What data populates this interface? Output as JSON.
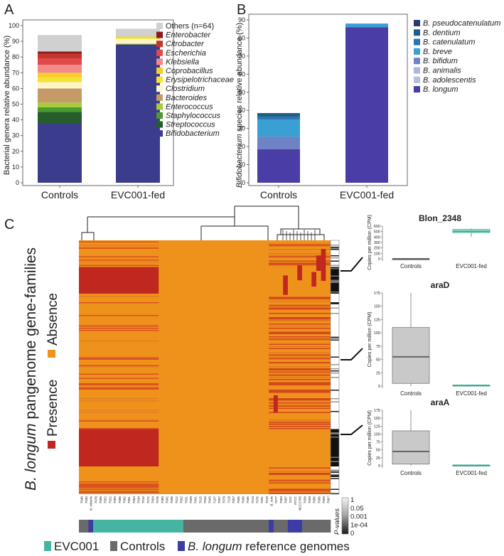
{
  "panelA": {
    "label": "A",
    "chart_data": {
      "type": "stacked-bar",
      "ylabel": "Bacterial genera relative abundance (%)",
      "ylim": [
        0,
        100
      ],
      "yticks": [
        0,
        10,
        20,
        30,
        40,
        50,
        60,
        70,
        80,
        90,
        100
      ],
      "categories": [
        "Controls",
        "EVC001-fed"
      ],
      "series": [
        {
          "name": "Bifidobacterium",
          "color": "#3b3c8c",
          "values": [
            38,
            88
          ]
        },
        {
          "name": "Streptococcus",
          "color": "#255e2a",
          "values": [
            7,
            0
          ]
        },
        {
          "name": "Staphylococcus",
          "color": "#4c9a2f",
          "values": [
            3,
            0
          ]
        },
        {
          "name": "Enterococcus",
          "color": "#a6cc3a",
          "values": [
            3,
            0.5
          ]
        },
        {
          "name": "Bacteroides",
          "color": "#c49a66",
          "values": [
            9,
            0
          ]
        },
        {
          "name": "Clostridium",
          "color": "#fff6c7",
          "values": [
            4,
            3
          ]
        },
        {
          "name": "Erysipelotrichaceae",
          "color": "#f2e335",
          "values": [
            3,
            1
          ]
        },
        {
          "name": "Coprobacillus",
          "color": "#f7cd2a",
          "values": [
            3,
            0.5
          ]
        },
        {
          "name": "Klebsiella",
          "color": "#f28a8a",
          "values": [
            5,
            0
          ]
        },
        {
          "name": "Escherichia",
          "color": "#e14a4a",
          "values": [
            4,
            0
          ]
        },
        {
          "name": "Citrobacter",
          "color": "#c8332e",
          "values": [
            3,
            0
          ]
        },
        {
          "name": "Enterobacter",
          "color": "#8d1a1a",
          "values": [
            1.5,
            0
          ]
        },
        {
          "name": "Others (n=64)",
          "color": "#d0d0d0",
          "values": [
            10.5,
            5
          ]
        }
      ]
    }
  },
  "panelB": {
    "label": "B",
    "chart_data": {
      "type": "stacked-bar",
      "ylabel_italic": "Bifidobacterium",
      "ylabel_rest": " species relative abundance (%)",
      "ylim": [
        0,
        90
      ],
      "yticks": [
        0,
        10,
        20,
        30,
        40,
        50,
        60,
        70,
        80,
        90
      ],
      "categories": [
        "Controls",
        "EVC001-fed"
      ],
      "series": [
        {
          "name": "B. longum",
          "color": "#4a3ea6",
          "values": [
            18.5,
            86
          ]
        },
        {
          "name": "B. adolescentis",
          "color": "#b4bfe4",
          "values": [
            0,
            0
          ]
        },
        {
          "name": "B. animalis",
          "color": "#aeb6df",
          "values": [
            0,
            0
          ]
        },
        {
          "name": "B. bifidum",
          "color": "#6e82c6",
          "values": [
            7,
            0
          ]
        },
        {
          "name": "B. breve",
          "color": "#3aa0d3",
          "values": [
            9.5,
            2
          ]
        },
        {
          "name": "B. catenulatum",
          "color": "#2b73b3",
          "values": [
            1.5,
            0
          ]
        },
        {
          "name": "B. dentium",
          "color": "#1d5f86",
          "values": [
            2,
            0
          ]
        },
        {
          "name": "B. pseudocatenulatum",
          "color": "#2a3c6e",
          "values": [
            0,
            0
          ]
        }
      ]
    }
  },
  "panelC": {
    "label": "C",
    "side_label_italic": "B. longum",
    "side_label_rest": " pangenome gene-families",
    "legend_presence": "Presence",
    "legend_absence": "Absence",
    "presence_color": "#c0281f",
    "absence_color": "#ee921c",
    "sample_labels": [
      "7046",
      "7030",
      "B. infantis",
      "7078",
      "7058",
      "7052",
      "7022",
      "7050",
      "7066",
      "7082",
      "7081",
      "7064",
      "7034",
      "7010",
      "7072",
      "7054",
      "7076",
      "7060",
      "7042",
      "7006",
      "7012",
      "7002",
      "7031",
      "7009",
      "7001",
      "7015",
      "7033",
      "7043",
      "7107",
      "7007",
      "7079",
      "7119",
      "7057",
      "7005",
      "7049",
      "7035",
      "7013",
      "7075",
      "7091",
      "7019",
      "B. suis",
      "7077",
      "7083",
      "7087",
      "D2C",
      "ATCC",
      "NCC2705",
      "7039",
      "7009",
      "7085",
      "7095",
      "7093",
      "7067"
    ],
    "pvalue_legend_title": "P-values",
    "pvalue_ticks": [
      "1",
      "0.05",
      "0.001",
      "1e-04",
      "0"
    ],
    "bottom_legend": {
      "evc001": "EVC001",
      "controls": "Controls",
      "reference_italic": "B. longum",
      "reference_rest": " reference genomes",
      "evc001_color": "#44b5a0",
      "controls_color": "#6a6a6a",
      "reference_color": "#3b3ca6"
    },
    "chart_data": [
      {
        "type": "box",
        "title": "Blon_2348",
        "ylabel": "Copies per million (CPM)",
        "ylim": [
          0,
          600
        ],
        "yticks": [
          0,
          100,
          200,
          300,
          400,
          500,
          600
        ],
        "categories": [
          "Controls",
          "EVC001-fed"
        ],
        "boxes": [
          {
            "group": "Controls",
            "min": 0,
            "q1": 0,
            "median": 0,
            "q3": 0,
            "max": 0,
            "color": "#bdbdbd"
          },
          {
            "group": "EVC001-fed",
            "min": 400,
            "q1": 480,
            "median": 505,
            "q3": 540,
            "max": 560,
            "color": "#b8ece0"
          }
        ]
      },
      {
        "type": "box",
        "title": "araD",
        "ylabel": "Copies per million (CPM)",
        "ylim": [
          0,
          175
        ],
        "yticks": [
          0,
          25,
          50,
          75,
          100,
          125,
          150,
          175
        ],
        "categories": [
          "Controls",
          "EVC001-fed"
        ],
        "boxes": [
          {
            "group": "Controls",
            "min": 0,
            "q1": 5,
            "median": 55,
            "q3": 110,
            "max": 175,
            "color": "#c9c9c9"
          },
          {
            "group": "EVC001-fed",
            "min": 0,
            "q1": 0,
            "median": 1,
            "q3": 2,
            "max": 2,
            "color": "#b8ece0"
          }
        ]
      },
      {
        "type": "box",
        "title": "araA",
        "ylabel": "Copies per million (CPM)",
        "ylim": [
          0,
          175
        ],
        "yticks": [
          0,
          25,
          50,
          75,
          100,
          125,
          150,
          175
        ],
        "categories": [
          "Controls",
          "EVC001-fed"
        ],
        "boxes": [
          {
            "group": "Controls",
            "min": 0,
            "q1": 5,
            "median": 45,
            "q3": 110,
            "max": 175,
            "color": "#c9c9c9"
          },
          {
            "group": "EVC001-fed",
            "min": 0,
            "q1": 0,
            "median": 1,
            "q3": 2,
            "max": 2,
            "color": "#b8ece0"
          }
        ]
      }
    ]
  }
}
